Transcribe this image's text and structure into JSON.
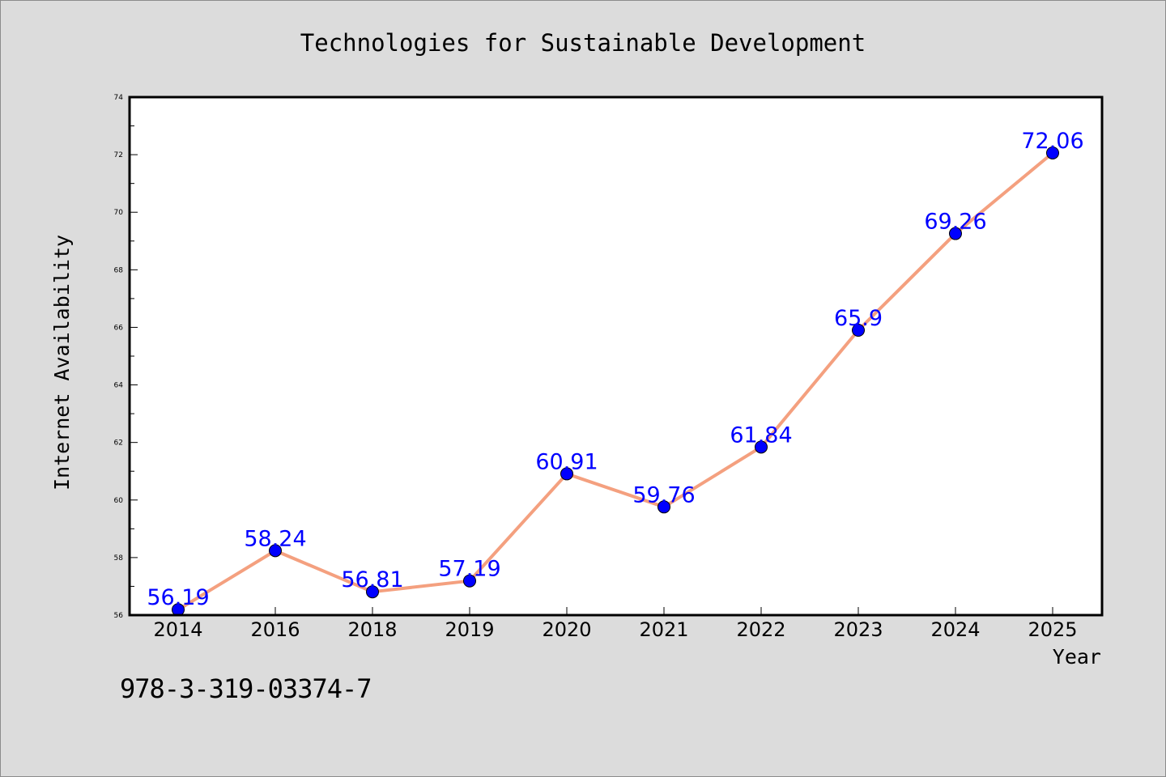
{
  "chart_data": {
    "type": "line",
    "title": "Technologies for Sustainable Development",
    "xlabel": "Year",
    "ylabel": "Internet Availability",
    "categories": [
      "2014",
      "2016",
      "2018",
      "2019",
      "2020",
      "2021",
      "2022",
      "2023",
      "2024",
      "2025"
    ],
    "series": [
      {
        "values": [
          56.19,
          58.24,
          56.81,
          57.19,
          60.91,
          59.76,
          61.84,
          65.9,
          69.26,
          72.06
        ],
        "labels": [
          "56.19",
          "58.24",
          "56.81",
          "57.19",
          "60.91",
          "59.76",
          "61.84",
          "65.9",
          "69.26",
          "72.06"
        ],
        "line_color": "#f4a07f",
        "marker_color": "#0000ff",
        "label_color": "#0000ff"
      }
    ],
    "ylim": [
      56,
      74
    ],
    "yticks": [
      "56",
      "58",
      "60",
      "62",
      "64",
      "66",
      "68",
      "70",
      "72",
      "74"
    ],
    "grid": false,
    "legend": "none"
  },
  "footer": {
    "isbn": "978-3-319-03374-7"
  },
  "colors": {
    "background": "#dcdcdc",
    "plot_background": "#ffffff"
  }
}
